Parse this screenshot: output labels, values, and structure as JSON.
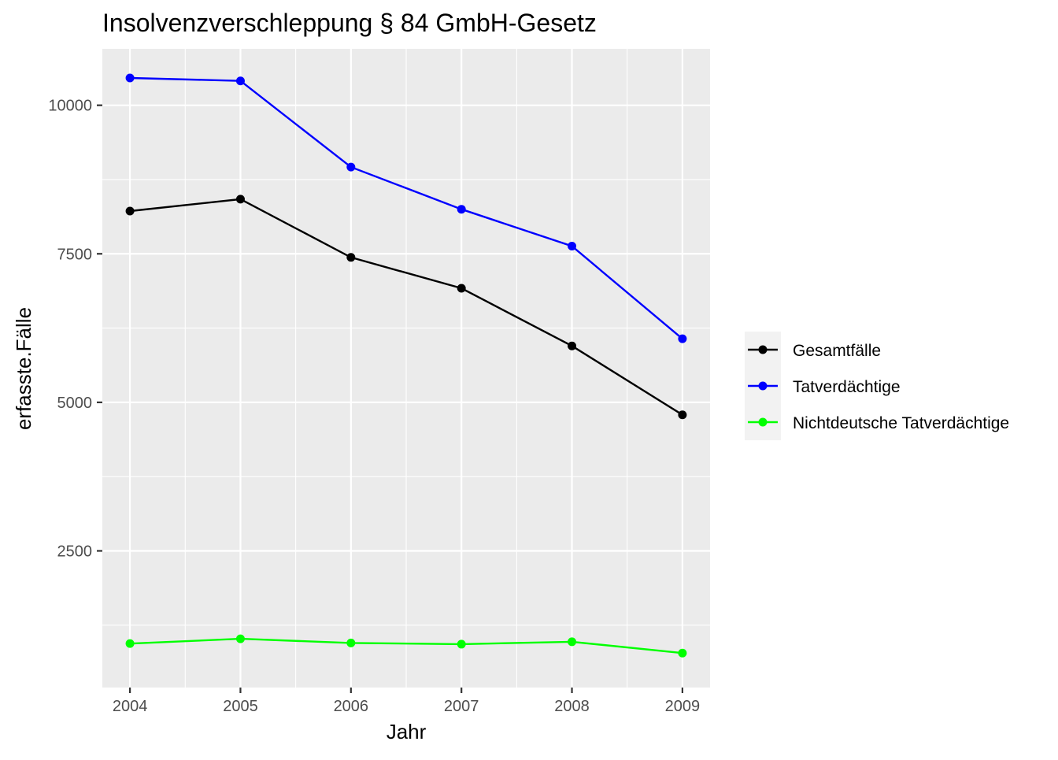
{
  "chart_data": {
    "type": "line",
    "title": "Insolvenzverschleppung § 84 GmbH-Gesetz",
    "xlabel": "Jahr",
    "ylabel": "erfasste.Fälle",
    "x": [
      2004,
      2005,
      2006,
      2007,
      2008,
      2009
    ],
    "x_tick_labels": [
      "2004",
      "2005",
      "2006",
      "2007",
      "2008",
      "2009"
    ],
    "y_ticks": [
      2500,
      5000,
      7500,
      10000
    ],
    "y_tick_labels": [
      "2500",
      "5000",
      "7500",
      "10000"
    ],
    "xlim": [
      2003.75,
      2009.25
    ],
    "ylim": [
      200,
      10950
    ],
    "grid": true,
    "legend_position": "right",
    "series": [
      {
        "name": "Gesamtfälle",
        "color": "#000000",
        "values": [
          8220,
          8420,
          7440,
          6920,
          5950,
          4790
        ]
      },
      {
        "name": "Tatverdächtige",
        "color": "#0000ff",
        "values": [
          10460,
          10410,
          8960,
          8250,
          7630,
          6070
        ]
      },
      {
        "name": "Nichtdeutsche Tatverdächtige",
        "color": "#00ff00",
        "values": [
          940,
          1020,
          950,
          930,
          970,
          780
        ]
      }
    ]
  }
}
